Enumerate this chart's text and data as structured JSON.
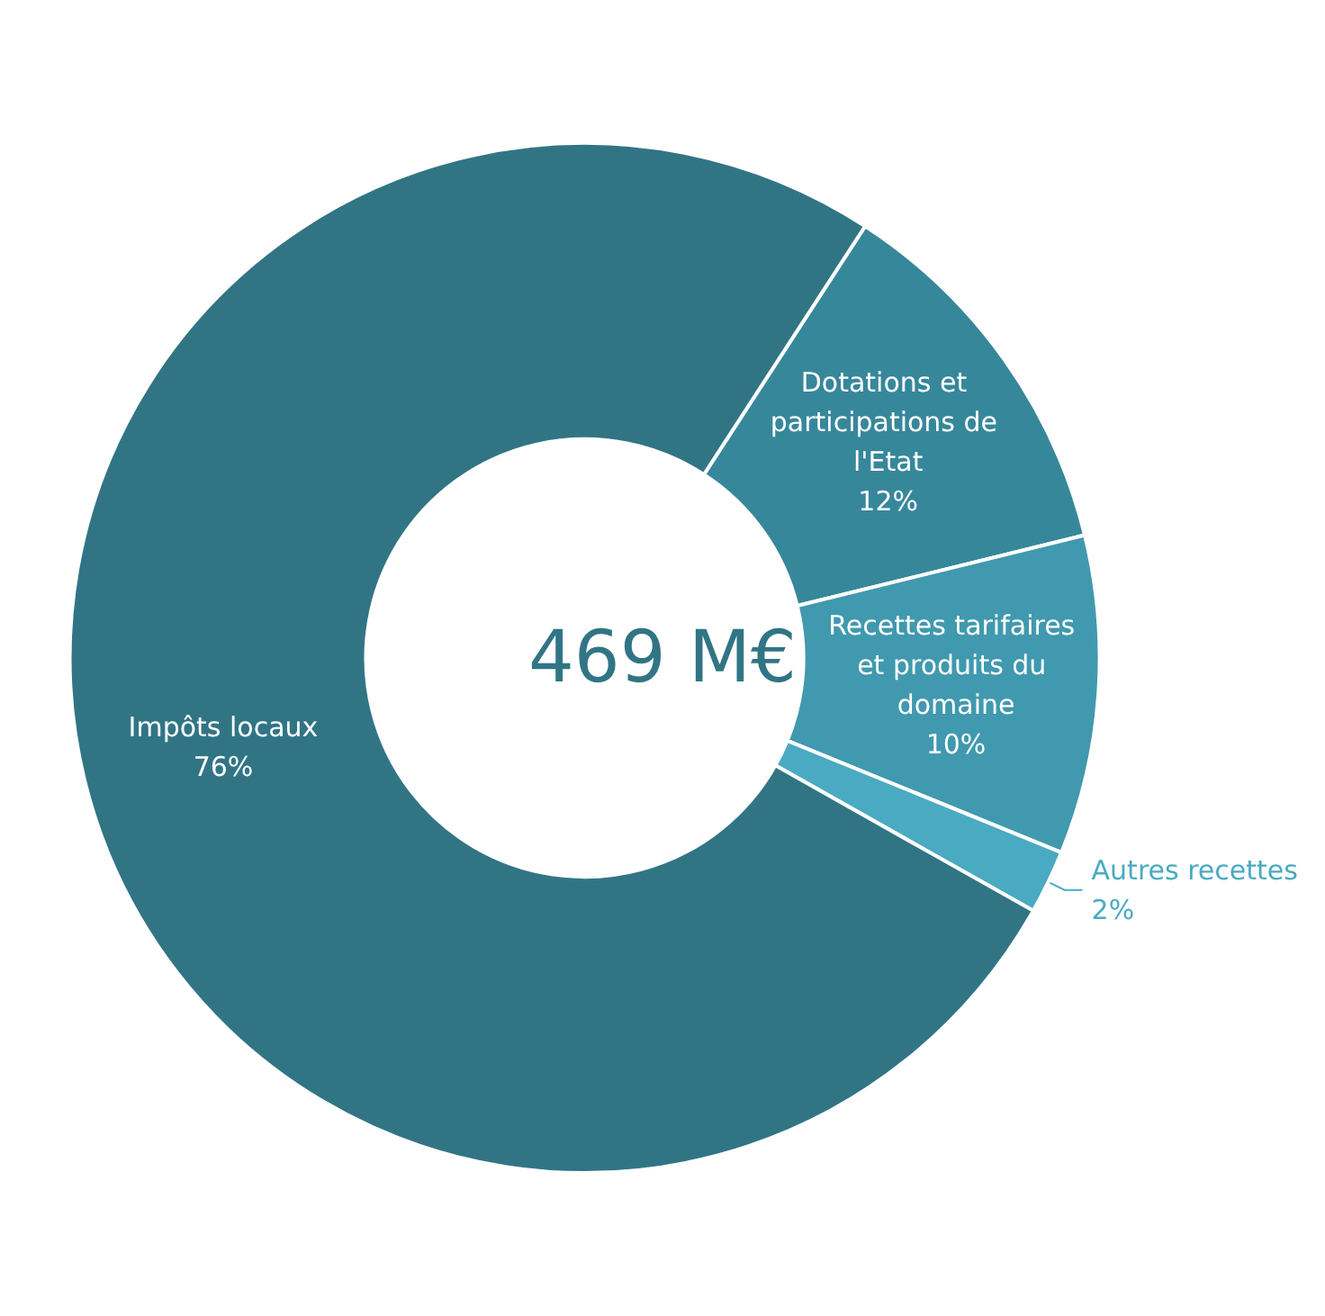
{
  "chart_data": {
    "type": "donut",
    "title": "469 M€",
    "categories": [
      "Dotations et participations de l'Etat",
      "Recettes tarifaires et produits du domaine",
      "Autres recettes",
      "Impôts locaux"
    ],
    "values": [
      12,
      10,
      2,
      76
    ],
    "colors": [
      "#37879b",
      "#4099ae",
      "#4aaac2",
      "#317585"
    ],
    "value_labels": [
      "12%",
      "10%",
      "2%",
      "76%"
    ],
    "legend": false
  }
}
